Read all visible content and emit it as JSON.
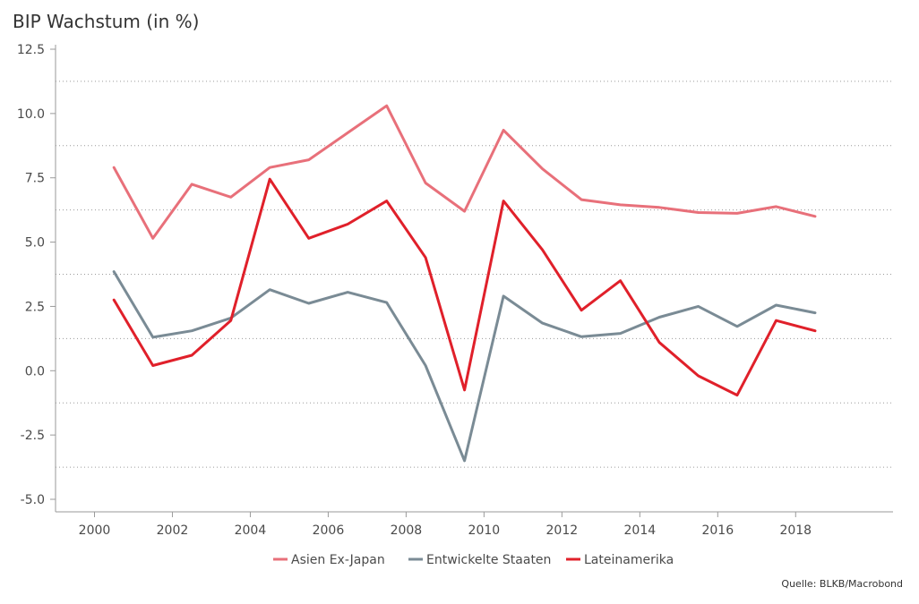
{
  "chart_data": {
    "type": "line",
    "title": "BIP Wachstum (in %)",
    "xlabel": "",
    "ylabel": "",
    "x": [
      2000.5,
      2001.5,
      2002.5,
      2003.5,
      2004.5,
      2005.5,
      2006.5,
      2007.5,
      2008.5,
      2009.5,
      2010.5,
      2011.5,
      2012.5,
      2013.5,
      2014.5,
      2015.5,
      2016.5,
      2017.5,
      2018.5
    ],
    "xlim": [
      1999.0,
      2020.5
    ],
    "ylim": [
      -5.0,
      12.5
    ],
    "x_ticks": [
      2000,
      2002,
      2004,
      2006,
      2008,
      2010,
      2012,
      2014,
      2016,
      2018
    ],
    "x_tick_labels": [
      "2000",
      "2002",
      "2004",
      "2006",
      "2008",
      "2010",
      "2012",
      "2014",
      "2016",
      "2018"
    ],
    "y_ticks": [
      12.5,
      10.0,
      7.5,
      5.0,
      2.5,
      0.0,
      -2.5,
      -5.0
    ],
    "y_tick_labels": [
      "12.5",
      "10.0",
      "7.5",
      "5.0",
      "2.5",
      "0.0",
      "-2.5",
      "-5.0"
    ],
    "grid": "horizontal dotted",
    "legend_position": "bottom-center",
    "series": [
      {
        "name": "Asien Ex-Japan",
        "color": "#e8707a",
        "values": [
          7.9,
          5.15,
          7.25,
          6.75,
          7.9,
          8.2,
          9.25,
          10.3,
          7.3,
          6.2,
          9.35,
          7.85,
          6.65,
          6.45,
          6.35,
          6.15,
          6.12,
          6.38,
          6.0
        ]
      },
      {
        "name": "Entwickelte Staaten",
        "color": "#7a8b95",
        "values": [
          3.85,
          1.3,
          1.55,
          2.05,
          3.15,
          2.62,
          3.05,
          2.65,
          0.2,
          -3.5,
          2.9,
          1.85,
          1.32,
          1.45,
          2.08,
          2.5,
          1.72,
          2.55,
          2.25
        ]
      },
      {
        "name": "Lateinamerika",
        "color": "#e0202a",
        "values": [
          2.75,
          0.2,
          0.6,
          1.95,
          7.45,
          5.15,
          5.7,
          6.6,
          4.4,
          -0.75,
          6.6,
          4.7,
          2.35,
          3.5,
          1.1,
          -0.2,
          -0.95,
          1.95,
          1.55
        ]
      }
    ]
  },
  "source": "Quelle: BLKB/Macrobond"
}
